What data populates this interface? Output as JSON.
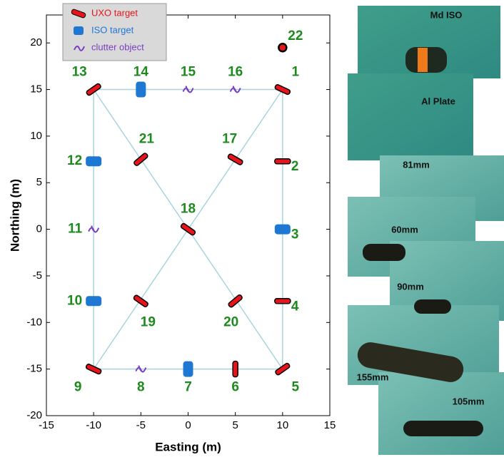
{
  "chart_data": {
    "type": "scatter",
    "xlabel": "Easting (m)",
    "ylabel": "Northing (m)",
    "xlim": [
      -15,
      15
    ],
    "ylim": [
      -20,
      23
    ],
    "xticks": [
      -15,
      -10,
      -5,
      0,
      5,
      10,
      15
    ],
    "yticks": [
      -20,
      -15,
      -10,
      -5,
      0,
      5,
      10,
      15,
      20
    ],
    "series": [
      {
        "name": "UXO target",
        "color": "#e8141b",
        "marker": "bar",
        "x": [
          10,
          10,
          10,
          10,
          5,
          -10,
          -10,
          5,
          0,
          -5,
          5,
          -5
        ],
        "y": [
          15,
          7.3,
          -7.7,
          -15,
          -15,
          -15,
          15,
          7.5,
          0,
          -7.7,
          -7.7,
          7.5
        ],
        "labels": [
          "1",
          "2",
          "4",
          "5",
          "6",
          "9",
          "13",
          "17",
          "18",
          "19",
          "20",
          "21"
        ]
      },
      {
        "name": "ISO target",
        "color": "#1f77d4",
        "marker": "block",
        "x": [
          10,
          0,
          -10,
          -10,
          -5
        ],
        "y": [
          0,
          -15,
          -7.7,
          7.3,
          15
        ],
        "labels": [
          "3",
          "7",
          "10",
          "12",
          "14"
        ]
      },
      {
        "name": "clutter object",
        "color": "#7b3fc0",
        "marker": "squiggle",
        "x": [
          -5,
          -10,
          0,
          5
        ],
        "y": [
          -15,
          0,
          15,
          15
        ],
        "labels": [
          "8",
          "11",
          "15",
          "16"
        ]
      }
    ],
    "reference_point": {
      "x": 10,
      "y": 19.5,
      "label": "22"
    },
    "photo_labels": [
      "Md ISO",
      "Al Plate",
      "81mm",
      "60mm",
      "90mm",
      "155mm",
      "105mm"
    ]
  }
}
